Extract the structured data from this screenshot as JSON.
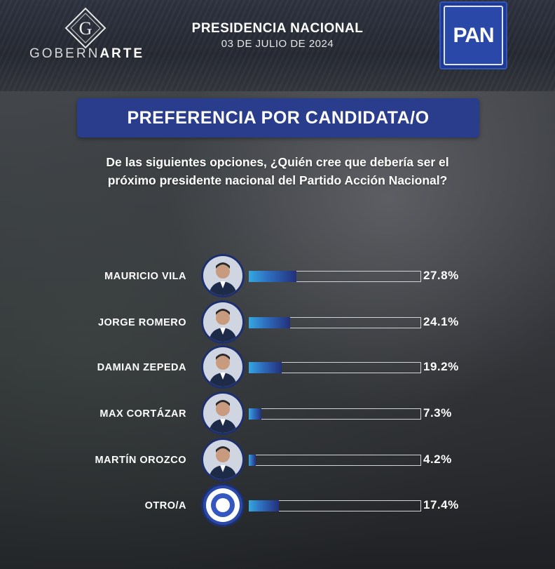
{
  "brand": {
    "logo_letter": "G",
    "name_light": "GOBERN",
    "name_bold": "ARTE"
  },
  "header": {
    "title": "PRESIDENCIA NACIONAL",
    "date": "03 DE JULIO DE 2024"
  },
  "party_logo": {
    "text": "PAN"
  },
  "panel_title": "PREFERENCIA POR CANDIDATA/O",
  "question_line1": "De las siguientes opciones, ¿Quién cree que debería ser el",
  "question_line2": "próximo presidente nacional del Partido Acción Nacional?",
  "colors": {
    "accent": "#2a3c8c",
    "bar_start": "#34a8e0",
    "bar_end": "#23307a"
  },
  "chart_data": {
    "type": "bar",
    "orientation": "horizontal",
    "title": "PREFERENCIA POR CANDIDATA/O",
    "categories": [
      "MAURICIO VILA",
      "JORGE ROMERO",
      "DAMIAN ZEPEDA",
      "MAX CORTÁZAR",
      "MARTÍN OROZCO",
      "OTRO/A"
    ],
    "values": [
      27.8,
      24.1,
      19.2,
      7.3,
      4.2,
      17.4
    ],
    "value_labels": [
      "27.8%",
      "24.1%",
      "19.2%",
      "7.3%",
      "4.2%",
      "17.4%"
    ],
    "unit": "%",
    "xlim": [
      0,
      100
    ],
    "grid": false
  }
}
